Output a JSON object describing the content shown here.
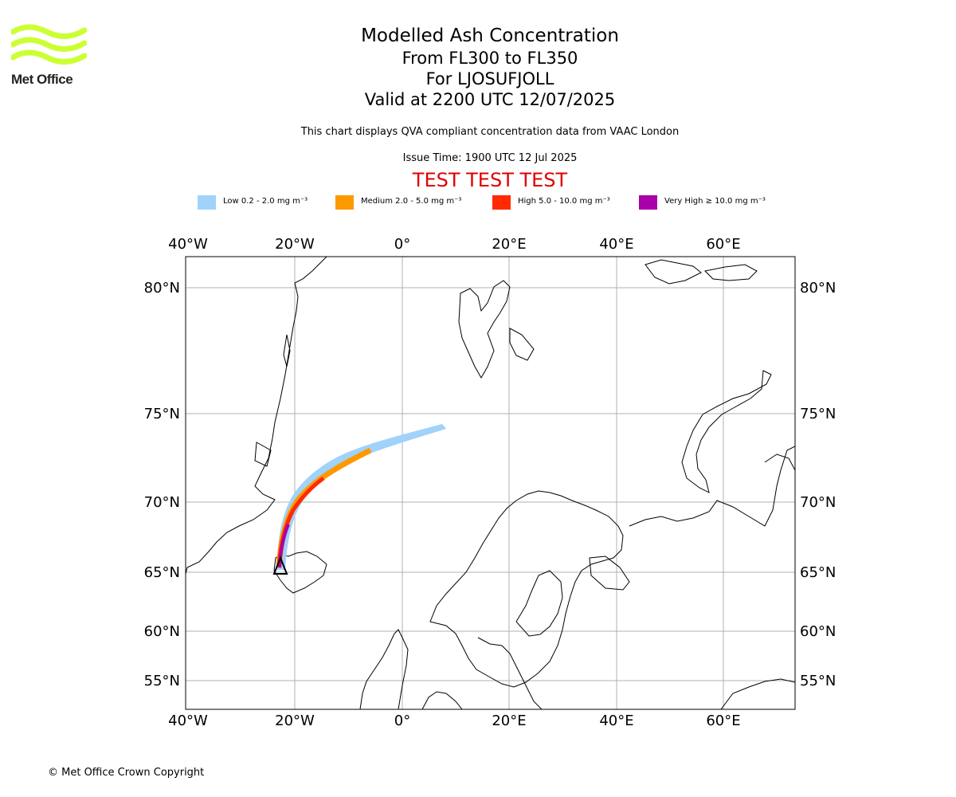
{
  "logo": {
    "text": "Met Office",
    "color": "#ccff33"
  },
  "title": {
    "main": "Modelled Ash Concentration",
    "levels": "From FL300 to FL350",
    "volcano": "For LJOSUFJOLL",
    "valid": "Valid at 2200 UTC 12/07/2025"
  },
  "subtitle": "This chart displays QVA compliant concentration data from VAAC London",
  "issue_time": "Issue Time: 1900 UTC 12 Jul 2025",
  "test_banner": "TEST TEST TEST",
  "legend": [
    {
      "label": "Low 0.2 - 2.0 mg m⁻³",
      "color": "#a0d2fa"
    },
    {
      "label": "Medium 2.0 - 5.0 mg m⁻³",
      "color": "#ff9900"
    },
    {
      "label": "High 5.0 - 10.0 mg m⁻³",
      "color": "#ff2a00"
    },
    {
      "label": "Very High ≥ 10.0 mg m⁻³",
      "color": "#aa00aa"
    }
  ],
  "map": {
    "longitude_labels": [
      "40°W",
      "20°W",
      "0°",
      "20°E",
      "40°E",
      "60°E"
    ],
    "latitude_labels": [
      "80°N",
      "75°N",
      "70°N",
      "65°N",
      "60°N",
      "55°N"
    ],
    "grid": true,
    "volcano_marker": "triangle"
  },
  "copyright": "© Met Office Crown Copyright"
}
